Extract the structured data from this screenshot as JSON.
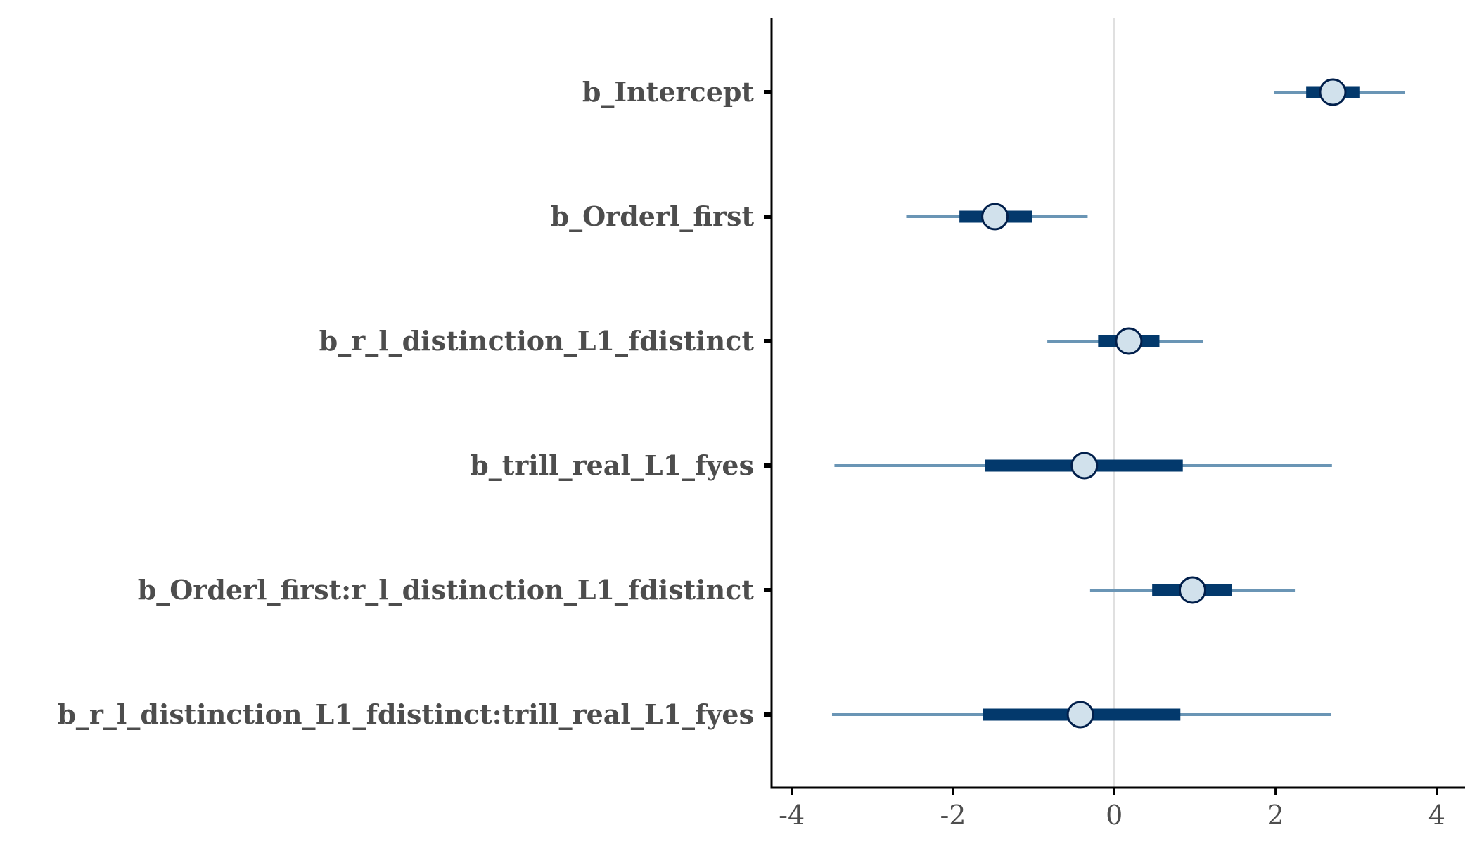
{
  "chart_data": {
    "type": "interval",
    "title": "",
    "xlabel": "",
    "ylabel": "",
    "xlim": [
      -4.25,
      4.35
    ],
    "x_ticks": [
      -4,
      -2,
      0,
      2,
      4
    ],
    "x_tick_labels": [
      "-4",
      "-2",
      "0",
      "2",
      "4"
    ],
    "reference_line": 0,
    "grid": false,
    "categories": [
      "b_Intercept",
      "b_Orderl_first",
      "b_r_l_distinction_L1_fdistinct",
      "b_trill_real_L1_fyes",
      "b_Orderl_first:r_l_distinction_L1_fdistinct",
      "b_r_l_distinction_L1_fdistinct:trill_real_L1_fyes"
    ],
    "series": [
      {
        "point": [
          2.71,
          -1.48,
          0.18,
          -0.37,
          0.97,
          -0.42
        ],
        "inner_interval": [
          [
            2.38,
            3.04
          ],
          [
            -1.92,
            -1.02
          ],
          [
            -0.2,
            0.56
          ],
          [
            -1.6,
            0.85
          ],
          [
            0.47,
            1.46
          ],
          [
            -1.63,
            0.82
          ]
        ],
        "outer_interval": [
          [
            1.98,
            3.6
          ],
          [
            -2.58,
            -0.33
          ],
          [
            -0.83,
            1.1
          ],
          [
            -3.47,
            2.7
          ],
          [
            -0.3,
            2.24
          ],
          [
            -3.5,
            2.69
          ]
        ]
      }
    ],
    "colors": {
      "outer_interval": "#6a95b5",
      "inner_interval": "#03396c",
      "point_fill": "#d1e1ec",
      "point_stroke": "#011f4b",
      "reference_line": "#e0e0e0",
      "axis": "#000000",
      "text": "#4d4d4d"
    }
  }
}
